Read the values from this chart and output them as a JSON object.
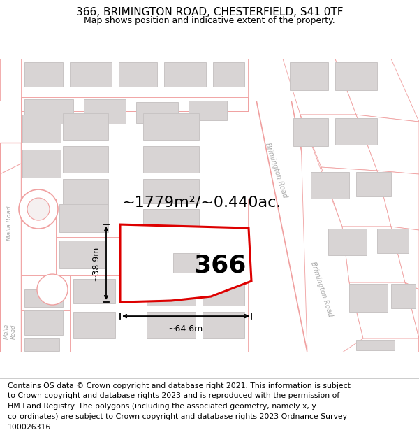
{
  "title": "366, BRIMINGTON ROAD, CHESTERFIELD, S41 0TF",
  "subtitle": "Map shows position and indicative extent of the property.",
  "footer_lines": [
    "Contains OS data © Crown copyright and database right 2021. This information is subject",
    "to Crown copyright and database rights 2023 and is reproduced with the permission of",
    "HM Land Registry. The polygons (including the associated geometry, namely x, y",
    "co-ordinates) are subject to Crown copyright and database rights 2023 Ordnance Survey",
    "100026316."
  ],
  "area_text": "~1779m²/~0.440ac.",
  "width_text": "~64.6m",
  "height_text": "~38.9m",
  "label_text": "366",
  "map_bg": "#fafafa",
  "plot_color": "#dd0000",
  "road_color": "#f0a0a0",
  "road_fill": "#f8f0f0",
  "building_color": "#d8d4d4",
  "building_edge": "#c8c4c4",
  "brim_road_label_color": "#aaaaaa",
  "malia_road_label_color": "#aaaaaa",
  "title_fontsize": 11,
  "subtitle_fontsize": 9,
  "footer_fontsize": 7.8,
  "area_fontsize": 16,
  "dim_fontsize": 9,
  "label_fontsize": 26
}
